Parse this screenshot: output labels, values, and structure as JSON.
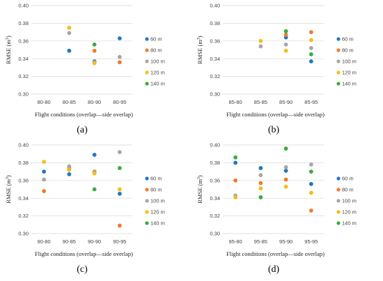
{
  "panel_labels": [
    "(a)",
    "(b)",
    "(c)",
    "(d)"
  ],
  "series_colors": [
    "#1f77c4",
    "#f07a2c",
    "#a6a6a6",
    "#f5bd16",
    "#3cab3c"
  ],
  "chart_data": [
    {
      "type": "scatter",
      "title": "",
      "xlabel": "Flight conditions (overlap—side overlap)",
      "ylabel": "RMSE (m³)",
      "ylabel_main": "RMSE (m",
      "ylabel_sup": "3",
      "ylabel_tail": ")",
      "categories": [
        "80-80",
        "80-85",
        "80-90",
        "80-95"
      ],
      "ylim": [
        0.3,
        0.4
      ],
      "yticks": [
        "0.30",
        "0.32",
        "0.34",
        "0.36",
        "0.38",
        "0.40"
      ],
      "grid": true,
      "legend_position": "right",
      "series": [
        {
          "name": "60 m",
          "values": [
            null,
            0.349,
            0.337,
            0.363
          ]
        },
        {
          "name": "80 m",
          "values": [
            null,
            null,
            0.349,
            0.336
          ]
        },
        {
          "name": "100 m",
          "values": [
            null,
            0.369,
            0.336,
            0.342
          ]
        },
        {
          "name": "120 m",
          "values": [
            null,
            0.375,
            0.335,
            null
          ]
        },
        {
          "name": "140 m",
          "values": [
            null,
            null,
            0.356,
            null
          ]
        }
      ]
    },
    {
      "type": "scatter",
      "title": "",
      "xlabel": "Flight conditions (overlap—side overlap)",
      "ylabel": "RMSE (m³)",
      "ylabel_main": "RMSE (m",
      "ylabel_sup": "3",
      "ylabel_tail": ")",
      "categories": [
        "85-80",
        "85-85",
        "85-90",
        "85-95"
      ],
      "ylim": [
        0.3,
        0.4
      ],
      "yticks": [
        "0.30",
        "0.32",
        "0.34",
        "0.36",
        "0.38",
        "0.40"
      ],
      "grid": true,
      "legend_position": "right",
      "series": [
        {
          "name": "60 m",
          "values": [
            null,
            null,
            0.364,
            0.337
          ]
        },
        {
          "name": "80 m",
          "values": [
            null,
            null,
            0.367,
            0.37
          ]
        },
        {
          "name": "100 m",
          "values": [
            null,
            0.354,
            0.356,
            0.352
          ]
        },
        {
          "name": "120 m",
          "values": [
            null,
            0.36,
            0.349,
            0.361
          ]
        },
        {
          "name": "140 m",
          "values": [
            null,
            null,
            0.371,
            0.345
          ]
        }
      ]
    },
    {
      "type": "scatter",
      "title": "",
      "xlabel": "Flight conditions (overlap—side overlap)",
      "ylabel": "RMSE (m³)",
      "ylabel_main": "RMSE (m",
      "ylabel_sup": "3",
      "ylabel_tail": ")",
      "categories": [
        "90-80",
        "90-85",
        "90-90",
        "90-95"
      ],
      "ylim": [
        0.3,
        0.4
      ],
      "yticks": [
        "0.30",
        "0.32",
        "0.34",
        "0.36",
        "0.38",
        "0.40"
      ],
      "grid": true,
      "legend_position": "right",
      "series": [
        {
          "name": "60 m",
          "values": [
            0.37,
            0.367,
            0.389,
            0.345
          ]
        },
        {
          "name": "80 m",
          "values": [
            0.348,
            0.374,
            0.37,
            0.309
          ]
        },
        {
          "name": "100 m",
          "values": [
            0.361,
            0.376,
            0.369,
            0.392
          ]
        },
        {
          "name": "120 m",
          "values": [
            0.381,
            0.372,
            0.368,
            0.35
          ]
        },
        {
          "name": "140 m",
          "values": [
            null,
            null,
            0.35,
            0.374
          ]
        }
      ]
    },
    {
      "type": "scatter",
      "title": "",
      "xlabel": "Flight conditions (overlap—side overlap)",
      "ylabel": "RMSE (m³)",
      "ylabel_main": "RMSE (m",
      "ylabel_sup": "3",
      "ylabel_tail": ")",
      "categories": [
        "95-80",
        "95-85",
        "95-90",
        "95-95"
      ],
      "ylim": [
        0.3,
        0.4
      ],
      "yticks": [
        "0.30",
        "0.32",
        "0.34",
        "0.36",
        "0.38",
        "0.40"
      ],
      "grid": true,
      "legend_position": "right",
      "series": [
        {
          "name": "60 m",
          "values": [
            0.38,
            0.374,
            0.371,
            0.356
          ]
        },
        {
          "name": "80 m",
          "values": [
            0.36,
            0.357,
            0.361,
            0.326
          ]
        },
        {
          "name": "100 m",
          "values": [
            0.343,
            0.366,
            0.375,
            0.378
          ]
        },
        {
          "name": "120 m",
          "values": [
            0.341,
            0.351,
            0.353,
            0.346
          ]
        },
        {
          "name": "140 m",
          "values": [
            0.386,
            0.341,
            0.396,
            0.37
          ]
        }
      ]
    }
  ]
}
